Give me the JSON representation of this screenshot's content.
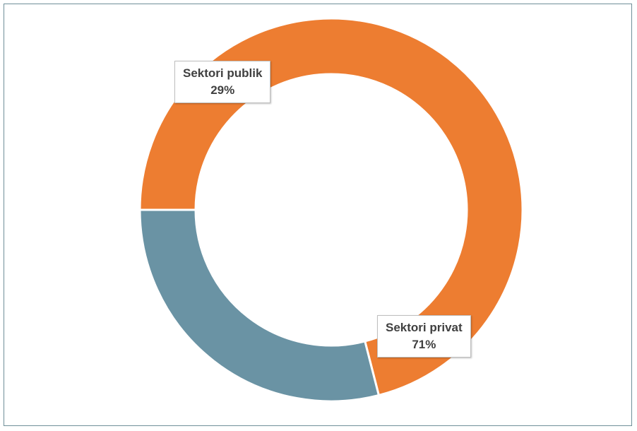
{
  "chart_data": {
    "type": "pie",
    "variant": "donut",
    "categories": [
      "Sektori privat",
      "Sektori publik"
    ],
    "values": [
      71,
      29
    ],
    "unit": "%",
    "colors": {
      "Sektori privat": "#ed7d31",
      "Sektori publik": "#6a93a4"
    },
    "data_labels": [
      {
        "name": "Sektori publik",
        "value": "29%"
      },
      {
        "name": "Sektori privat",
        "value": "71%"
      }
    ],
    "legend": "none"
  }
}
